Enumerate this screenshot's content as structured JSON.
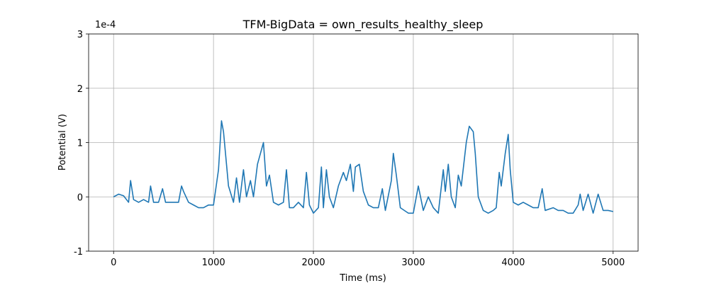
{
  "chart_data": {
    "type": "line",
    "title": "TFM-BigData = own_results_healthy_sleep",
    "xlabel": "Time (ms)",
    "ylabel": "Potential (V)",
    "y_offset_label": "1e-4",
    "x": [
      0,
      50,
      100,
      150,
      170,
      200,
      250,
      300,
      350,
      370,
      400,
      450,
      490,
      520,
      580,
      650,
      680,
      700,
      750,
      800,
      850,
      900,
      950,
      1000,
      1050,
      1080,
      1100,
      1120,
      1150,
      1200,
      1230,
      1260,
      1300,
      1330,
      1370,
      1400,
      1440,
      1470,
      1500,
      1530,
      1560,
      1600,
      1650,
      1700,
      1730,
      1760,
      1800,
      1850,
      1900,
      1930,
      1960,
      2000,
      2050,
      2080,
      2100,
      2130,
      2160,
      2200,
      2250,
      2300,
      2330,
      2370,
      2400,
      2420,
      2460,
      2500,
      2550,
      2600,
      2650,
      2690,
      2720,
      2780,
      2800,
      2830,
      2870,
      2950,
      3000,
      3050,
      3100,
      3150,
      3200,
      3250,
      3300,
      3320,
      3350,
      3380,
      3420,
      3450,
      3480,
      3530,
      3560,
      3600,
      3620,
      3650,
      3700,
      3750,
      3800,
      3830,
      3860,
      3880,
      3920,
      3950,
      3970,
      4000,
      4050,
      4100,
      4150,
      4200,
      4250,
      4290,
      4320,
      4400,
      4450,
      4500,
      4550,
      4600,
      4650,
      4670,
      4700,
      4750,
      4800,
      4850,
      4900,
      4950,
      5000
    ],
    "series": [
      {
        "color": "#1f77b4",
        "values": [
          0,
          0.05,
          0.02,
          -0.1,
          0.3,
          -0.05,
          -0.1,
          -0.05,
          -0.1,
          0.2,
          -0.1,
          -0.1,
          0.15,
          -0.1,
          -0.1,
          -0.1,
          0.2,
          0.1,
          -0.1,
          -0.15,
          -0.2,
          -0.2,
          -0.15,
          -0.15,
          0.5,
          1.4,
          1.2,
          0.8,
          0.2,
          -0.1,
          0.35,
          -0.1,
          0.5,
          0,
          0.3,
          0,
          0.6,
          0.8,
          1.0,
          0.2,
          0.4,
          -0.1,
          -0.15,
          -0.1,
          0.5,
          -0.2,
          -0.2,
          -0.1,
          -0.2,
          0.45,
          -0.15,
          -0.3,
          -0.2,
          0.55,
          -0.2,
          0.5,
          0,
          -0.2,
          0.2,
          0.45,
          0.3,
          0.6,
          0.1,
          0.55,
          0.6,
          0.1,
          -0.15,
          -0.2,
          -0.2,
          0.15,
          -0.25,
          0.3,
          0.8,
          0.4,
          -0.2,
          -0.3,
          -0.3,
          0.2,
          -0.25,
          0,
          -0.2,
          -0.3,
          0.5,
          0.1,
          0.6,
          0,
          -0.2,
          0.4,
          0.2,
          1.0,
          1.3,
          1.2,
          0.8,
          0,
          -0.25,
          -0.3,
          -0.25,
          -0.2,
          0.45,
          0.2,
          0.8,
          1.15,
          0.5,
          -0.1,
          -0.15,
          -0.1,
          -0.15,
          -0.2,
          -0.2,
          0.15,
          -0.25,
          -0.2,
          -0.25,
          -0.25,
          -0.3,
          -0.3,
          -0.15,
          0.05,
          -0.25,
          0.05,
          -0.3,
          0.05,
          -0.25,
          -0.25,
          -0.27
        ]
      }
    ],
    "xlim": [
      -250,
      5250
    ],
    "ylim": [
      -1,
      3
    ],
    "xticks": [
      0,
      1000,
      2000,
      3000,
      4000,
      5000
    ],
    "yticks": [
      -1,
      0,
      1,
      2,
      3
    ],
    "grid": true
  }
}
